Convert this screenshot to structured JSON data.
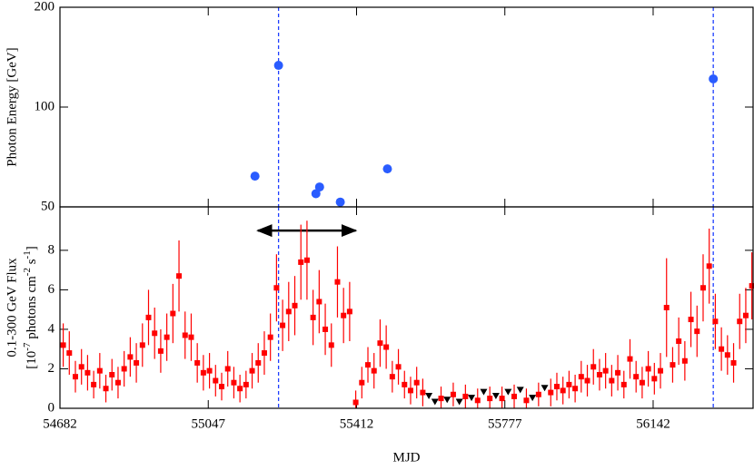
{
  "chart_data": [
    {
      "type": "scatter",
      "ylabel": "Photon Energy [GeV]",
      "log_y": true,
      "xlim": [
        54682,
        56388
      ],
      "ylim": [
        50,
        200
      ],
      "yticks": [
        50,
        100,
        200
      ],
      "xticks": [
        54682,
        55047,
        55412,
        55777,
        56142
      ],
      "vlines": [
        55220,
        56290
      ],
      "vline_color": "#1f3fff",
      "series": [
        {
          "color": "#2a5cff",
          "marker": "circle",
          "x": [
            55162,
            55220,
            55312,
            55321,
            55372,
            55488,
            56290
          ],
          "values": [
            61.9,
            133.6,
            54.8,
            57.4,
            51.7,
            65.1,
            121.6
          ]
        }
      ]
    },
    {
      "type": "scatter",
      "ylabel_line1": "0.1-300 GeV Flux",
      "ylabel_line2": [
        "[10",
        "-7",
        " photons cm",
        "-2",
        " s",
        "-1",
        "]"
      ],
      "xlabel": "MJD",
      "xlim": [
        54682,
        56388
      ],
      "ylim": [
        0,
        10.2
      ],
      "yticks": [
        0,
        2,
        4,
        6,
        8
      ],
      "xticks": [
        54682,
        55047,
        55412,
        55777,
        56142
      ],
      "vlines": [
        55220,
        56290
      ],
      "vline_color": "#1f3fff",
      "arrow": {
        "x": [
          55169,
          55410
        ],
        "y": 9.0
      },
      "series": [
        {
          "color": "#ff0000",
          "marker": "square",
          "x": [
            54690,
            54705,
            54720,
            54735,
            54750,
            54765,
            54780,
            54795,
            54810,
            54825,
            54840,
            54855,
            54870,
            54885,
            54900,
            54915,
            54930,
            54945,
            54960,
            54975,
            54990,
            55005,
            55020,
            55035,
            55050,
            55065,
            55080,
            55095,
            55110,
            55125,
            55140,
            55155,
            55170,
            55185,
            55200,
            55215,
            55230,
            55245,
            55260,
            55275,
            55290,
            55305,
            55320,
            55335,
            55350,
            55365,
            55380,
            55395,
            55410,
            55425,
            55440,
            55455,
            55470,
            55485,
            55500,
            55515,
            55530,
            55545,
            55560,
            55575,
            55620,
            55650,
            55680,
            55710,
            55740,
            55770,
            55800,
            55830,
            55860,
            55890,
            55905,
            55920,
            55935,
            55950,
            55965,
            55980,
            55995,
            56010,
            56025,
            56040,
            56055,
            56070,
            56085,
            56100,
            56115,
            56130,
            56145,
            56160,
            56175,
            56190,
            56205,
            56220,
            56235,
            56250,
            56265,
            56280,
            56295,
            56310,
            56325,
            56340,
            56355,
            56370,
            56385
          ],
          "values": [
            3.2,
            2.8,
            1.6,
            2.1,
            1.8,
            1.2,
            1.9,
            1.0,
            1.7,
            1.3,
            2.0,
            2.6,
            2.3,
            3.2,
            4.6,
            3.8,
            2.9,
            3.6,
            4.8,
            6.7,
            3.7,
            3.6,
            2.3,
            1.8,
            1.9,
            1.4,
            1.1,
            2.0,
            1.3,
            1.0,
            1.2,
            1.9,
            2.3,
            2.8,
            3.6,
            6.1,
            4.2,
            4.9,
            5.2,
            7.4,
            7.5,
            4.6,
            5.4,
            4.0,
            3.2,
            6.4,
            4.7,
            4.9,
            0.3,
            1.3,
            2.2,
            1.9,
            3.3,
            3.1,
            1.6,
            2.1,
            1.2,
            0.9,
            1.3,
            0.8,
            0.5,
            0.7,
            0.6,
            0.4,
            0.5,
            0.5,
            0.6,
            0.4,
            0.7,
            0.8,
            1.1,
            0.9,
            1.2,
            1.0,
            1.6,
            1.4,
            2.1,
            1.7,
            1.9,
            1.4,
            1.8,
            1.2,
            2.5,
            1.6,
            1.3,
            2.0,
            1.5,
            1.9,
            5.1,
            2.2,
            3.4,
            2.4,
            4.5,
            3.9,
            6.1,
            7.2,
            4.4,
            3.0,
            2.7,
            2.3,
            4.4,
            4.7,
            6.2
          ],
          "errors": [
            1.1,
            1.1,
            0.8,
            0.9,
            0.9,
            0.7,
            0.9,
            0.7,
            0.8,
            0.8,
            0.9,
            1.0,
            1.0,
            1.1,
            1.4,
            1.3,
            1.1,
            1.2,
            1.5,
            1.8,
            1.2,
            1.2,
            1.0,
            0.9,
            0.9,
            0.8,
            0.7,
            0.9,
            0.8,
            0.7,
            0.7,
            0.9,
            1.0,
            1.1,
            1.2,
            1.7,
            1.3,
            1.5,
            1.5,
            1.9,
            2.0,
            1.4,
            1.6,
            1.3,
            1.1,
            1.8,
            1.4,
            1.5,
            0.6,
            0.8,
            0.9,
            0.9,
            1.2,
            1.1,
            0.8,
            0.9,
            0.7,
            0.7,
            0.8,
            0.7,
            0.6,
            0.6,
            0.6,
            0.6,
            0.6,
            0.6,
            0.6,
            0.6,
            0.6,
            0.7,
            0.7,
            0.7,
            0.7,
            0.7,
            0.8,
            0.8,
            0.9,
            0.8,
            0.9,
            0.8,
            0.9,
            0.7,
            1.0,
            0.8,
            0.8,
            0.9,
            0.8,
            0.9,
            2.5,
            0.9,
            1.2,
            1.0,
            1.4,
            1.3,
            1.7,
            1.9,
            1.4,
            1.1,
            1.0,
            1.0,
            1.4,
            1.4,
            1.7
          ]
        },
        {
          "color": "#000000",
          "marker": "triangle-down",
          "x": [
            55590,
            55605,
            55635,
            55665,
            55695,
            55725,
            55755,
            55785,
            55815,
            55845,
            55875
          ],
          "values": [
            0.6,
            0.3,
            0.4,
            0.3,
            0.5,
            0.8,
            0.6,
            0.8,
            0.9,
            0.5,
            1.0
          ]
        }
      ]
    }
  ]
}
